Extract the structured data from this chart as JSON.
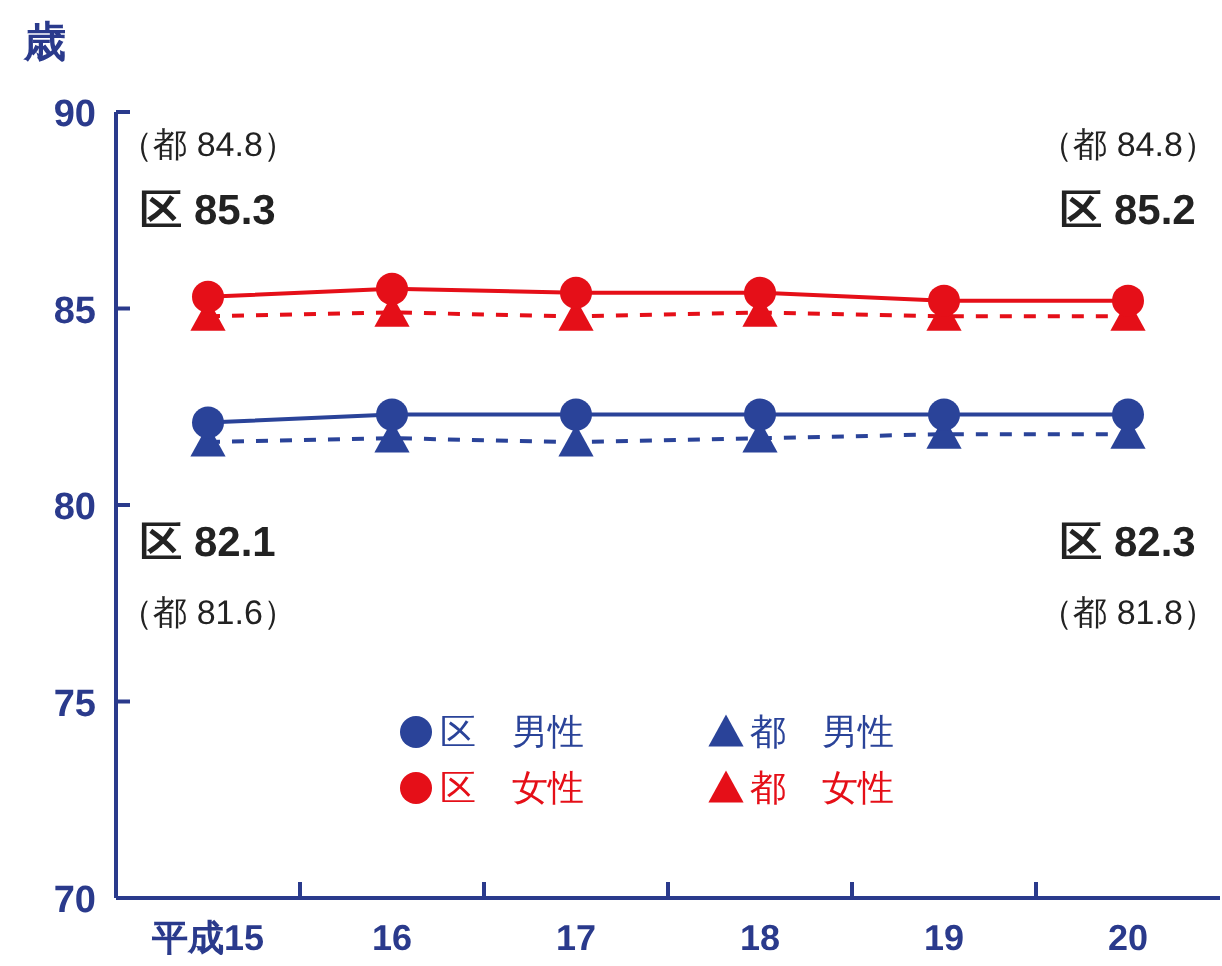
{
  "chart_data": {
    "type": "line",
    "ylabel": "歳",
    "categories": [
      "平成15",
      "16",
      "17",
      "18",
      "19",
      "20"
    ],
    "series": [
      {
        "name": "区　男性",
        "color": "#2a4399",
        "values": [
          82.1,
          82.3,
          82.3,
          82.3,
          82.3,
          82.3
        ],
        "marker": "circle",
        "line_style": "solid"
      },
      {
        "name": "区　女性",
        "color": "#e50f18",
        "values": [
          85.3,
          85.5,
          85.4,
          85.4,
          85.2,
          85.2
        ],
        "marker": "circle",
        "line_style": "solid"
      },
      {
        "name": "都　男性",
        "color": "#2a4399",
        "values": [
          81.6,
          81.7,
          81.6,
          81.7,
          81.8,
          81.8
        ],
        "marker": "triangle",
        "line_style": "dashed"
      },
      {
        "name": "都　女性",
        "color": "#e50f18",
        "values": [
          84.8,
          84.9,
          84.8,
          84.9,
          84.8,
          84.8
        ],
        "marker": "triangle",
        "line_style": "dashed"
      }
    ],
    "ylim": [
      70,
      90
    ],
    "yticks": [
      70,
      75,
      80,
      85,
      90
    ],
    "legend": "bottom",
    "grid": false,
    "annotations": [
      "（都 84.8）",
      "区 85.3",
      "（都 84.8）",
      "区 85.2",
      "区 82.1",
      "（都 81.6）",
      "区 82.3",
      "（都 81.8）"
    ]
  }
}
